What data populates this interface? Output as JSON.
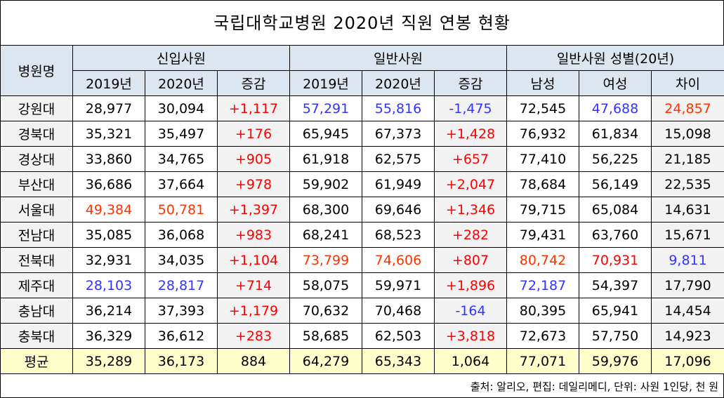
{
  "title": "국립대학교병원 2020년 직원 연봉 현황",
  "source": "출처: 알리오, 편집: 데일리메디, 단위: 사원 1인당, 천 원",
  "colors": {
    "k": "#000000",
    "r": "#ff0000",
    "o": "#ff3300",
    "b": "#3333ff"
  },
  "chart_data": {
    "type": "table",
    "title": "국립대학교병원 2020년 직원 연봉 현황",
    "row_header": "병원명",
    "groups": [
      "신입사원",
      "일반사원",
      "일반사원 성별(20년)"
    ],
    "columns": [
      "2019년",
      "2020년",
      "증감",
      "2019년",
      "2020년",
      "증감",
      "남성",
      "여성",
      "차이"
    ],
    "rows": [
      {
        "name": "강원대",
        "values": [
          "28,977",
          "30,094",
          "+1,117",
          "57,291",
          "55,816",
          "-1,475",
          "72,545",
          "47,688",
          "24,857"
        ],
        "colors": [
          "k",
          "k",
          "r",
          "b",
          "b",
          "b",
          "k",
          "b",
          "o"
        ]
      },
      {
        "name": "경북대",
        "values": [
          "35,321",
          "35,497",
          "+176",
          "65,945",
          "67,373",
          "+1,428",
          "76,932",
          "61,834",
          "15,098"
        ],
        "colors": [
          "k",
          "k",
          "r",
          "k",
          "k",
          "r",
          "k",
          "k",
          "k"
        ]
      },
      {
        "name": "경상대",
        "values": [
          "33,860",
          "34,765",
          "+905",
          "61,918",
          "62,575",
          "+657",
          "77,410",
          "56,225",
          "21,185"
        ],
        "colors": [
          "k",
          "k",
          "r",
          "k",
          "k",
          "r",
          "k",
          "k",
          "k"
        ]
      },
      {
        "name": "부산대",
        "values": [
          "36,686",
          "37,664",
          "+978",
          "59,902",
          "61,949",
          "+2,047",
          "78,684",
          "56,149",
          "22,535"
        ],
        "colors": [
          "k",
          "k",
          "r",
          "k",
          "k",
          "r",
          "k",
          "k",
          "k"
        ]
      },
      {
        "name": "서울대",
        "values": [
          "49,384",
          "50,781",
          "+1,397",
          "68,300",
          "69,646",
          "+1,346",
          "79,715",
          "65,084",
          "14,631"
        ],
        "colors": [
          "o",
          "o",
          "r",
          "k",
          "k",
          "r",
          "k",
          "k",
          "k"
        ]
      },
      {
        "name": "전남대",
        "values": [
          "35,085",
          "36,068",
          "+983",
          "68,241",
          "68,523",
          "+282",
          "79,431",
          "63,760",
          "15,671"
        ],
        "colors": [
          "k",
          "k",
          "r",
          "k",
          "k",
          "r",
          "k",
          "k",
          "k"
        ]
      },
      {
        "name": "전북대",
        "values": [
          "32,931",
          "34,035",
          "+1,104",
          "73,799",
          "74,606",
          "+807",
          "80,742",
          "70,931",
          "9,811"
        ],
        "colors": [
          "k",
          "k",
          "r",
          "o",
          "o",
          "r",
          "o",
          "r",
          "b"
        ]
      },
      {
        "name": "제주대",
        "values": [
          "28,103",
          "28,817",
          "+714",
          "58,075",
          "59,971",
          "+1,896",
          "72,187",
          "54,397",
          "17,790"
        ],
        "colors": [
          "b",
          "b",
          "r",
          "k",
          "k",
          "r",
          "b",
          "k",
          "k"
        ]
      },
      {
        "name": "충남대",
        "values": [
          "36,214",
          "37,393",
          "+1,179",
          "70,632",
          "70,468",
          "-164",
          "80,395",
          "65,941",
          "14,454"
        ],
        "colors": [
          "k",
          "k",
          "r",
          "k",
          "k",
          "b",
          "k",
          "k",
          "k"
        ]
      },
      {
        "name": "충북대",
        "values": [
          "36,329",
          "36,612",
          "+283",
          "58,685",
          "62,503",
          "+3,818",
          "72,673",
          "57,750",
          "14,923"
        ],
        "colors": [
          "k",
          "k",
          "r",
          "k",
          "k",
          "r",
          "k",
          "k",
          "k"
        ]
      }
    ],
    "average": {
      "name": "평균",
      "values": [
        "35,289",
        "36,173",
        "884",
        "64,279",
        "65,343",
        "1,064",
        "77,071",
        "59,976",
        "17,096"
      ]
    }
  }
}
